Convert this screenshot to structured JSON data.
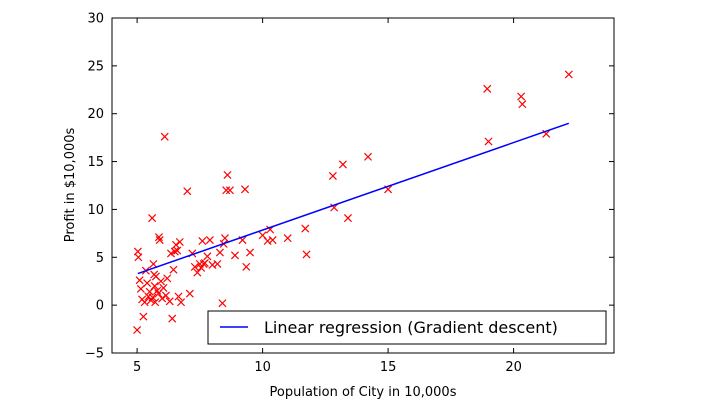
{
  "chart_data": {
    "type": "scatter",
    "xlabel": "Population of City in 10,000s",
    "ylabel": "Profit in $10,000s",
    "xlim": [
      4,
      24
    ],
    "ylim": [
      -5,
      30
    ],
    "xticks": [
      5,
      10,
      15,
      20
    ],
    "yticks": [
      -5,
      0,
      5,
      10,
      15,
      20,
      25,
      30
    ],
    "grid": false,
    "legend_position": "lower-right",
    "colors": {
      "scatter": "#ff0000",
      "line": "#0000ff",
      "axes": "#000000"
    },
    "series": [
      {
        "type": "line",
        "name": "Linear regression (Gradient descent)",
        "points": [
          [
            5.03,
            3.3
          ],
          [
            22.2,
            19.0
          ]
        ]
      },
      {
        "type": "scatter",
        "marker": "x",
        "points": [
          [
            5.0,
            -2.6
          ],
          [
            5.03,
            5.6
          ],
          [
            5.05,
            5.0
          ],
          [
            5.1,
            2.6
          ],
          [
            5.15,
            1.7
          ],
          [
            5.2,
            0.6
          ],
          [
            5.25,
            -1.2
          ],
          [
            5.3,
            0.3
          ],
          [
            5.35,
            3.6
          ],
          [
            5.4,
            2.3
          ],
          [
            5.45,
            0.9
          ],
          [
            5.5,
            1.4
          ],
          [
            5.55,
            0.5
          ],
          [
            5.6,
            9.1
          ],
          [
            5.62,
            0.8
          ],
          [
            5.65,
            4.3
          ],
          [
            5.68,
            3.2
          ],
          [
            5.7,
            2.0
          ],
          [
            5.72,
            0.3
          ],
          [
            5.75,
            3.0
          ],
          [
            5.8,
            1.5
          ],
          [
            5.85,
            1.2
          ],
          [
            5.87,
            7.1
          ],
          [
            5.9,
            6.8
          ],
          [
            5.95,
            2.5
          ],
          [
            6.0,
            0.7
          ],
          [
            6.05,
            1.8
          ],
          [
            6.1,
            17.6
          ],
          [
            6.15,
            1.0
          ],
          [
            6.2,
            2.8
          ],
          [
            6.3,
            0.4
          ],
          [
            6.35,
            5.4
          ],
          [
            6.4,
            -1.4
          ],
          [
            6.45,
            3.7
          ],
          [
            6.5,
            5.6
          ],
          [
            6.55,
            6.3
          ],
          [
            6.6,
            5.7
          ],
          [
            6.65,
            0.9
          ],
          [
            6.7,
            6.6
          ],
          [
            6.75,
            0.3
          ],
          [
            7.0,
            11.9
          ],
          [
            7.1,
            1.2
          ],
          [
            7.2,
            5.4
          ],
          [
            7.3,
            4.0
          ],
          [
            7.4,
            3.4
          ],
          [
            7.5,
            4.3
          ],
          [
            7.55,
            3.9
          ],
          [
            7.6,
            6.7
          ],
          [
            7.65,
            4.3
          ],
          [
            7.7,
            4.4
          ],
          [
            7.8,
            5.1
          ],
          [
            7.9,
            6.8
          ],
          [
            8.0,
            4.2
          ],
          [
            8.2,
            4.3
          ],
          [
            8.3,
            5.5
          ],
          [
            8.4,
            0.2
          ],
          [
            8.45,
            6.4
          ],
          [
            8.5,
            7.0
          ],
          [
            8.55,
            12.0
          ],
          [
            8.6,
            13.6
          ],
          [
            8.7,
            12.0
          ],
          [
            8.9,
            5.2
          ],
          [
            9.2,
            6.8
          ],
          [
            9.3,
            12.1
          ],
          [
            9.35,
            4.0
          ],
          [
            9.5,
            5.5
          ],
          [
            10.0,
            7.3
          ],
          [
            10.2,
            6.7
          ],
          [
            10.3,
            7.9
          ],
          [
            10.4,
            6.8
          ],
          [
            11.0,
            7.0
          ],
          [
            11.7,
            8.0
          ],
          [
            11.75,
            5.3
          ],
          [
            12.8,
            13.5
          ],
          [
            12.85,
            10.2
          ],
          [
            13.2,
            14.7
          ],
          [
            13.4,
            9.1
          ],
          [
            14.2,
            15.5
          ],
          [
            15.0,
            12.1
          ],
          [
            18.95,
            22.6
          ],
          [
            19.0,
            17.1
          ],
          [
            20.3,
            21.8
          ],
          [
            20.35,
            21.0
          ],
          [
            21.3,
            17.9
          ],
          [
            22.2,
            24.1
          ]
        ]
      }
    ]
  }
}
